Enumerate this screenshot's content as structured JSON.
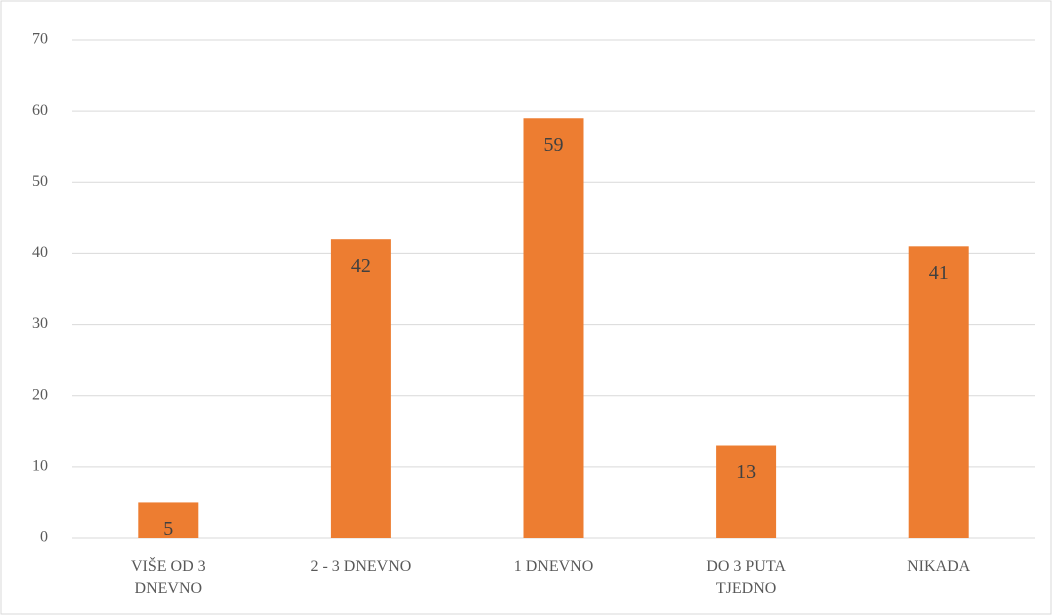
{
  "chart_data": {
    "type": "bar",
    "categories": [
      "VIŠE OD 3 DNEVNO",
      "2 - 3 DNEVNO",
      "1 DNEVNO",
      "DO 3 PUTA TJEDNO",
      "NIKADA"
    ],
    "values": [
      5,
      42,
      59,
      13,
      41
    ],
    "color": "#ed7d31",
    "ylim": [
      0,
      70
    ],
    "yticks": [
      0,
      10,
      20,
      30,
      40,
      50,
      60,
      70
    ],
    "grid": true
  }
}
